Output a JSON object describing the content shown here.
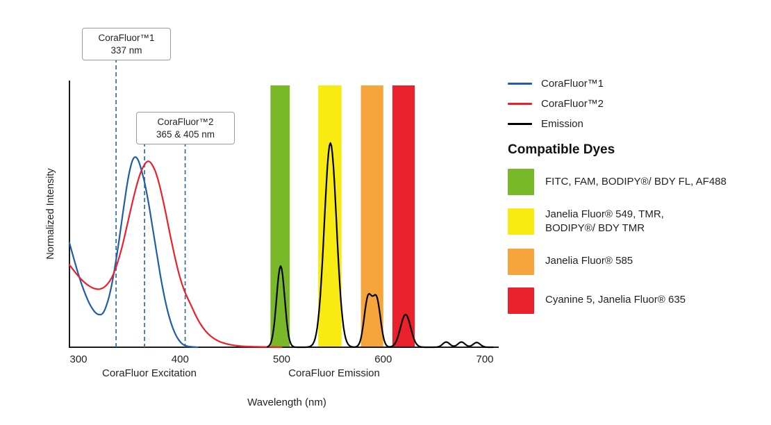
{
  "chart_data": {
    "type": "line",
    "title": "",
    "xlabel": "Wavelength (nm)",
    "ylabel": "Normalized Intensity",
    "x_ticks": [
      300,
      400,
      500,
      600,
      700
    ],
    "x_range": [
      291,
      710
    ],
    "y_range": [
      0,
      1.05
    ],
    "grid": false,
    "excitation_section_label": "CoraFluor Excitation",
    "emission_section_label": "CoraFluor Emission",
    "annotation_line_color": "#2E6DA8",
    "annotations": [
      {
        "title": "CoraFluor™1",
        "value": "337 nm",
        "lines_nm": [
          337
        ]
      },
      {
        "title": "CoraFluor™2",
        "value": "365 & 405 nm",
        "lines_nm": [
          365,
          405
        ]
      }
    ],
    "bands": [
      {
        "name": "FITC / FAM / BODIPY FL / AF488 window",
        "from_nm": 489,
        "to_nm": 508,
        "color": "#79B829"
      },
      {
        "name": "Janelia Fluor 549 / TMR window",
        "from_nm": 536,
        "to_nm": 559,
        "color": "#F7EB13"
      },
      {
        "name": "Janelia Fluor 585 window",
        "from_nm": 578,
        "to_nm": 600,
        "color": "#F5A53C"
      },
      {
        "name": "Cyanine 5 / Janelia Fluor 635 window",
        "from_nm": 609,
        "to_nm": 631,
        "color": "#E8212C"
      }
    ],
    "series": [
      {
        "name": "CoraFluor™1",
        "color": "#1F5DA8",
        "kind": "points",
        "points": [
          [
            291,
            0.4
          ],
          [
            296,
            0.33
          ],
          [
            301,
            0.265
          ],
          [
            306,
            0.21
          ],
          [
            311,
            0.165
          ],
          [
            316,
            0.135
          ],
          [
            320,
            0.125
          ],
          [
            324,
            0.13
          ],
          [
            328,
            0.165
          ],
          [
            332,
            0.225
          ],
          [
            336,
            0.31
          ],
          [
            340,
            0.41
          ],
          [
            344,
            0.52
          ],
          [
            348,
            0.625
          ],
          [
            352,
            0.7
          ],
          [
            355,
            0.725
          ],
          [
            358,
            0.72
          ],
          [
            361,
            0.69
          ],
          [
            365,
            0.63
          ],
          [
            369,
            0.55
          ],
          [
            373,
            0.455
          ],
          [
            377,
            0.36
          ],
          [
            381,
            0.265
          ],
          [
            385,
            0.185
          ],
          [
            389,
            0.12
          ],
          [
            393,
            0.072
          ],
          [
            397,
            0.038
          ],
          [
            401,
            0.017
          ],
          [
            405,
            0.006
          ],
          [
            410,
            0.002
          ],
          [
            417,
            0
          ]
        ]
      },
      {
        "name": "CoraFluor™2",
        "color": "#E8212C",
        "kind": "points",
        "points": [
          [
            291,
            0.315
          ],
          [
            297,
            0.285
          ],
          [
            303,
            0.258
          ],
          [
            309,
            0.238
          ],
          [
            315,
            0.225
          ],
          [
            321,
            0.222
          ],
          [
            327,
            0.235
          ],
          [
            333,
            0.268
          ],
          [
            338,
            0.318
          ],
          [
            343,
            0.385
          ],
          [
            348,
            0.468
          ],
          [
            353,
            0.552
          ],
          [
            358,
            0.628
          ],
          [
            362,
            0.675
          ],
          [
            366,
            0.703
          ],
          [
            369,
            0.71
          ],
          [
            372,
            0.7
          ],
          [
            376,
            0.668
          ],
          [
            380,
            0.615
          ],
          [
            384,
            0.548
          ],
          [
            388,
            0.472
          ],
          [
            392,
            0.396
          ],
          [
            396,
            0.326
          ],
          [
            400,
            0.265
          ],
          [
            404,
            0.218
          ],
          [
            408,
            0.183
          ],
          [
            412,
            0.15
          ],
          [
            416,
            0.117
          ],
          [
            420,
            0.089
          ],
          [
            425,
            0.062
          ],
          [
            430,
            0.043
          ],
          [
            436,
            0.027
          ],
          [
            442,
            0.017
          ],
          [
            450,
            0.009
          ],
          [
            460,
            0.004
          ],
          [
            472,
            0.002
          ],
          [
            486,
            0.001
          ],
          [
            500,
            0
          ]
        ]
      },
      {
        "name": "Emission",
        "color": "#000000",
        "kind": "peaks",
        "range_nm": [
          486,
          708
        ],
        "peaks": [
          {
            "center_nm": 499,
            "height": 0.31,
            "sigma_nm": 4
          },
          {
            "center_nm": 548,
            "height": 0.78,
            "sigma_nm": 6
          },
          {
            "center_nm": 585,
            "height": 0.185,
            "sigma_nm": 3.8
          },
          {
            "center_nm": 593.5,
            "height": 0.18,
            "sigma_nm": 3.8
          },
          {
            "center_nm": 622,
            "height": 0.125,
            "sigma_nm": 5
          },
          {
            "center_nm": 662,
            "height": 0.02,
            "sigma_nm": 3.5
          },
          {
            "center_nm": 677,
            "height": 0.02,
            "sigma_nm": 3.5
          },
          {
            "center_nm": 692,
            "height": 0.018,
            "sigma_nm": 3.5
          }
        ]
      }
    ]
  },
  "legend": {
    "series": [
      {
        "label": "CoraFluor™1",
        "color": "#1F5DA8"
      },
      {
        "label": "CoraFluor™2",
        "color": "#E8212C"
      },
      {
        "label": "Emission",
        "color": "#000000"
      }
    ],
    "dyes_heading": "Compatible Dyes",
    "dyes": [
      {
        "label": "FITC, FAM, BODIPY®/ BDY FL, AF488",
        "color": "#79B829"
      },
      {
        "label": "Janelia Fluor® 549, TMR,\nBODIPY®/ BDY TMR",
        "color": "#F7EB13"
      },
      {
        "label": "Janelia Fluor® 585",
        "color": "#F5A53C"
      },
      {
        "label": "Cyanine 5, Janelia Fluor® 635",
        "color": "#E8212C"
      }
    ]
  }
}
